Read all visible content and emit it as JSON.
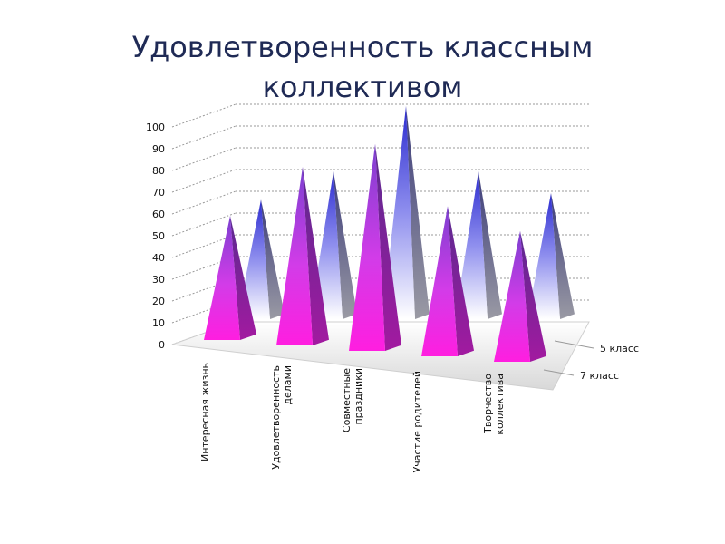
{
  "slide": {
    "title_line1": "Удовлетворенность классным",
    "title_line2": "коллективом"
  },
  "chart_data": {
    "type": "bar",
    "style": "3d-pyramid",
    "title": "Удовлетворенность классным коллективом",
    "categories": [
      [
        "Интересная жизнь"
      ],
      [
        "Удовлетворенность",
        "делами"
      ],
      [
        "Совместные",
        "праздники"
      ],
      [
        "Участие родителей"
      ],
      [
        "Творчество",
        "коллектива"
      ]
    ],
    "series": [
      {
        "name": "7 класс",
        "values": [
          55,
          80,
          93,
          67,
          58
        ],
        "color": "#ff33dd"
      },
      {
        "name": "5 класс",
        "values": [
          57,
          70,
          100,
          70,
          60
        ],
        "color": "#3333cc"
      }
    ],
    "ylim": [
      0,
      100
    ],
    "yticks": [
      0,
      10,
      20,
      30,
      40,
      50,
      60,
      70,
      80,
      90,
      100
    ],
    "grid": true
  }
}
